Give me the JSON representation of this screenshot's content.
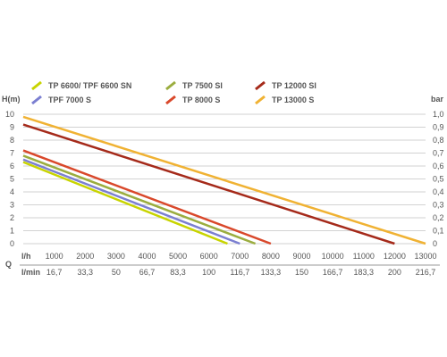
{
  "chart_data": {
    "type": "line",
    "title": "",
    "left_axis_label": "H(m)",
    "right_axis_label": "bar",
    "x_row_label": "l/h",
    "x2_row_label": "l/min",
    "x_outer_label": "Q",
    "xlim": [
      0,
      13000
    ],
    "ylim": [
      0,
      10
    ],
    "grid": "horizontal",
    "legend_position": "top",
    "x_ticks": [
      "0",
      "1000",
      "2000",
      "3000",
      "4000",
      "5000",
      "6000",
      "7000",
      "8000",
      "9000",
      "10000",
      "11000",
      "12000",
      "13000"
    ],
    "x2_ticks": [
      "16,7",
      "33,3",
      "50",
      "66,7",
      "83,3",
      "100",
      "116,7",
      "133,3",
      "150",
      "166,7",
      "183,3",
      "200",
      "216,7"
    ],
    "y_ticks": [
      "0",
      "1",
      "2",
      "3",
      "4",
      "5",
      "6",
      "7",
      "8",
      "9",
      "10"
    ],
    "y2_ticks": [
      "0",
      "0,1",
      "0,2",
      "0,3",
      "0,4",
      "0,5",
      "0,6",
      "0,7",
      "0,8",
      "0,9",
      "1,0"
    ],
    "series": [
      {
        "name": "TP 6600/ TPF 6600 SN",
        "color": "#c8d400",
        "x": [
          0,
          6600
        ],
        "y": [
          6.3,
          0
        ]
      },
      {
        "name": "TPF 7000 S",
        "color": "#7b7fd1",
        "x": [
          0,
          7000
        ],
        "y": [
          6.5,
          0
        ]
      },
      {
        "name": "TP 7500 SI",
        "color": "#9bad3f",
        "x": [
          0,
          7500
        ],
        "y": [
          6.8,
          0
        ]
      },
      {
        "name": "TP 8000 S",
        "color": "#d9482b",
        "x": [
          0,
          8000
        ],
        "y": [
          7.2,
          0
        ]
      },
      {
        "name": "TP 12000 SI",
        "color": "#a52a1a",
        "x": [
          0,
          12000
        ],
        "y": [
          9.2,
          0
        ]
      },
      {
        "name": "TP 13000 S",
        "color": "#f0b233",
        "x": [
          0,
          13000
        ],
        "y": [
          9.8,
          0
        ]
      }
    ],
    "legend_order": [
      0,
      2,
      4,
      1,
      3,
      5
    ]
  }
}
